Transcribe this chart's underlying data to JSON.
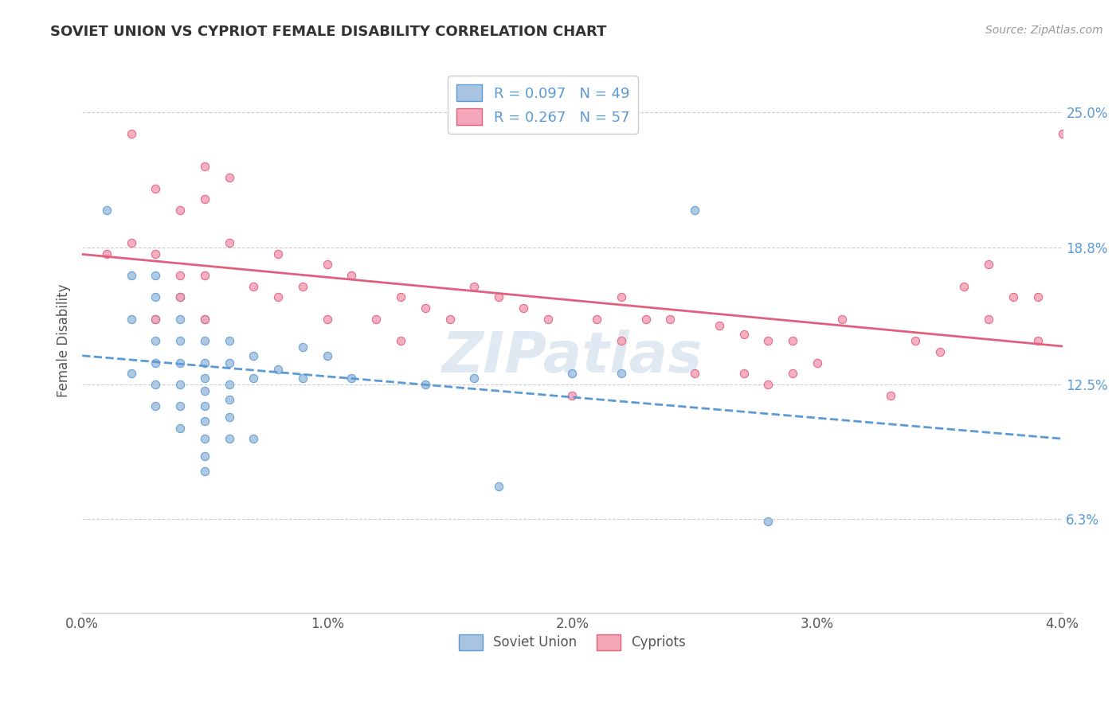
{
  "title": "SOVIET UNION VS CYPRIOT FEMALE DISABILITY CORRELATION CHART",
  "source": "Source: ZipAtlas.com",
  "ylabel": "Female Disability",
  "xlim": [
    0.0,
    0.04
  ],
  "ylim": [
    0.02,
    0.27
  ],
  "xtick_labels": [
    "0.0%",
    "1.0%",
    "2.0%",
    "3.0%",
    "4.0%"
  ],
  "xtick_values": [
    0.0,
    0.01,
    0.02,
    0.03,
    0.04
  ],
  "ytick_labels": [
    "6.3%",
    "12.5%",
    "18.8%",
    "25.0%"
  ],
  "ytick_values": [
    0.063,
    0.125,
    0.188,
    0.25
  ],
  "soviet_color": "#a8c4e0",
  "cypriot_color": "#f4a7b9",
  "soviet_line_color": "#5b9bd5",
  "cypriot_line_color": "#e06080",
  "legend_soviet_label": "R = 0.097   N = 49",
  "legend_cypriot_label": "R = 0.267   N = 57",
  "legend_label_soviet": "Soviet Union",
  "legend_label_cypriot": "Cypriots",
  "background_color": "#ffffff",
  "grid_color": "#cccccc",
  "watermark_text": "ZIPatlas",
  "watermark_color": "#c8d8e8",
  "soviet_x": [
    0.001,
    0.002,
    0.002,
    0.002,
    0.003,
    0.003,
    0.003,
    0.003,
    0.003,
    0.003,
    0.003,
    0.004,
    0.004,
    0.004,
    0.004,
    0.004,
    0.004,
    0.004,
    0.005,
    0.005,
    0.005,
    0.005,
    0.005,
    0.005,
    0.005,
    0.005,
    0.005,
    0.005,
    0.006,
    0.006,
    0.006,
    0.006,
    0.006,
    0.006,
    0.007,
    0.007,
    0.007,
    0.008,
    0.009,
    0.009,
    0.01,
    0.011,
    0.014,
    0.016,
    0.017,
    0.02,
    0.022,
    0.025,
    0.028
  ],
  "soviet_y": [
    0.205,
    0.175,
    0.155,
    0.13,
    0.175,
    0.165,
    0.155,
    0.145,
    0.135,
    0.125,
    0.115,
    0.165,
    0.155,
    0.145,
    0.135,
    0.125,
    0.115,
    0.105,
    0.155,
    0.145,
    0.135,
    0.128,
    0.122,
    0.115,
    0.108,
    0.1,
    0.092,
    0.085,
    0.145,
    0.135,
    0.125,
    0.118,
    0.11,
    0.1,
    0.138,
    0.128,
    0.1,
    0.132,
    0.142,
    0.128,
    0.138,
    0.128,
    0.125,
    0.128,
    0.078,
    0.13,
    0.13,
    0.205,
    0.062
  ],
  "cypriot_x": [
    0.001,
    0.002,
    0.002,
    0.003,
    0.003,
    0.003,
    0.004,
    0.004,
    0.004,
    0.005,
    0.005,
    0.005,
    0.005,
    0.006,
    0.006,
    0.007,
    0.008,
    0.008,
    0.009,
    0.01,
    0.01,
    0.011,
    0.012,
    0.013,
    0.013,
    0.014,
    0.015,
    0.016,
    0.017,
    0.018,
    0.019,
    0.02,
    0.021,
    0.022,
    0.022,
    0.023,
    0.024,
    0.025,
    0.026,
    0.027,
    0.027,
    0.028,
    0.028,
    0.029,
    0.029,
    0.03,
    0.031,
    0.033,
    0.034,
    0.035,
    0.036,
    0.037,
    0.037,
    0.038,
    0.039,
    0.039,
    0.04
  ],
  "cypriot_y": [
    0.185,
    0.24,
    0.19,
    0.215,
    0.185,
    0.155,
    0.205,
    0.175,
    0.165,
    0.225,
    0.21,
    0.175,
    0.155,
    0.22,
    0.19,
    0.17,
    0.185,
    0.165,
    0.17,
    0.18,
    0.155,
    0.175,
    0.155,
    0.165,
    0.145,
    0.16,
    0.155,
    0.17,
    0.165,
    0.16,
    0.155,
    0.12,
    0.155,
    0.165,
    0.145,
    0.155,
    0.155,
    0.13,
    0.152,
    0.148,
    0.13,
    0.145,
    0.125,
    0.145,
    0.13,
    0.135,
    0.155,
    0.12,
    0.145,
    0.14,
    0.17,
    0.155,
    0.18,
    0.165,
    0.165,
    0.145,
    0.24
  ]
}
